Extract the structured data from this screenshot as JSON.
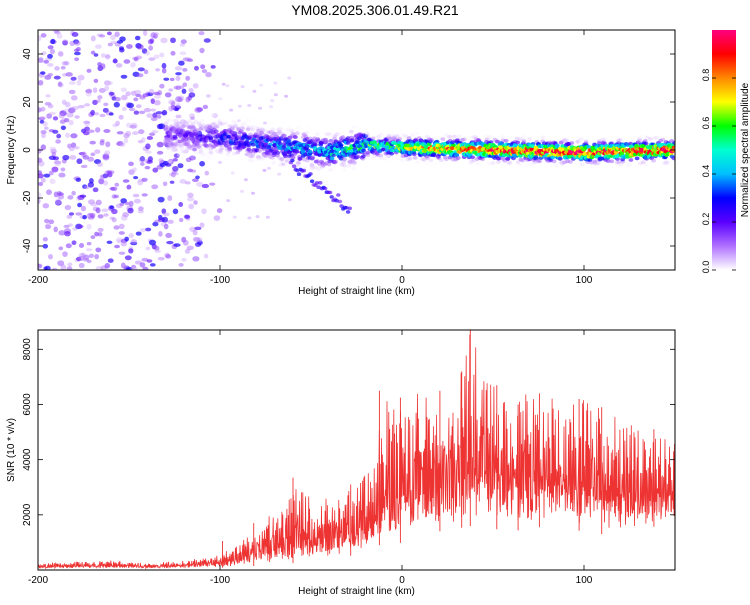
{
  "title": "YM08.2025.306.01.49.R21",
  "chart_data": [
    {
      "type": "heatmap",
      "name": "spectrogram",
      "xlabel": "Height of straight line (km)",
      "ylabel": "Frequency (Hz)",
      "xlim": [
        -200,
        150
      ],
      "ylim": [
        -50,
        50
      ],
      "xticks": [
        -200,
        -100,
        0,
        100
      ],
      "yticks": [
        -40,
        -20,
        0,
        20,
        40
      ],
      "colorbar": {
        "label": "Normalized spectral amplitude",
        "range": [
          0.0,
          1.0
        ],
        "ticks": [
          0.0,
          0.2,
          0.4,
          0.6,
          0.8
        ],
        "tick_labels": [
          "0.0",
          "0.2",
          "0.4",
          "0.6",
          "0.8"
        ],
        "colors": [
          "#ffffff",
          "#b070ff",
          "#5a00ff",
          "#0000ff",
          "#00bfff",
          "#00ffd0",
          "#00ff00",
          "#ffff00",
          "#ff8800",
          "#ff0000",
          "#ff0080"
        ]
      },
      "description": "Scattered purple noise dominates heights -200 to -100 km across all frequencies; a central band near 0 Hz strengthens from -100 km, turning cyan/green then red/yellow near 0 Hz beyond 0 km; a faint branch descends from about -5 Hz at -60 km to about -25 Hz at -30 km.",
      "band": {
        "center_hz": [
          [
            -120,
            6
          ],
          [
            -100,
            5
          ],
          [
            -80,
            3
          ],
          [
            -60,
            1
          ],
          [
            -40,
            -1
          ],
          [
            -20,
            2
          ],
          [
            0,
            1
          ],
          [
            50,
            0
          ],
          [
            100,
            -1
          ],
          [
            150,
            0
          ]
        ],
        "peak_amplitude": [
          [
            -120,
            0.2
          ],
          [
            -100,
            0.3
          ],
          [
            -80,
            0.35
          ],
          [
            -60,
            0.45
          ],
          [
            -40,
            0.5
          ],
          [
            -20,
            0.6
          ],
          [
            0,
            0.7
          ],
          [
            30,
            0.85
          ],
          [
            60,
            0.9
          ],
          [
            100,
            0.95
          ],
          [
            150,
            0.9
          ]
        ]
      }
    },
    {
      "type": "line",
      "name": "snr",
      "xlabel": "Height of straight line (km)",
      "ylabel": "SNR (10 * v/v)",
      "xlim": [
        -200,
        150
      ],
      "ylim": [
        0,
        8700
      ],
      "xticks": [
        -200,
        -100,
        0,
        100
      ],
      "yticks": [
        2000,
        4000,
        6000,
        8000
      ],
      "color": "#ee3333",
      "series": [
        {
          "name": "SNR",
          "x": [
            -200,
            -180,
            -160,
            -140,
            -120,
            -100,
            -90,
            -80,
            -70,
            -60,
            -50,
            -40,
            -30,
            -20,
            -15,
            -10,
            -5,
            0,
            10,
            20,
            30,
            38,
            50,
            60,
            70,
            80,
            90,
            100,
            110,
            120,
            130,
            140,
            150
          ],
          "min": [
            50,
            60,
            60,
            50,
            60,
            80,
            120,
            150,
            200,
            250,
            300,
            400,
            500,
            600,
            800,
            1000,
            900,
            1000,
            1200,
            1400,
            1500,
            1600,
            1500,
            1400,
            1500,
            1600,
            1500,
            1400,
            1300,
            1300,
            1400,
            1600,
            1800
          ],
          "max": [
            250,
            300,
            350,
            250,
            350,
            600,
            900,
            1600,
            2100,
            3200,
            2700,
            2600,
            2900,
            3600,
            3900,
            6300,
            5800,
            6100,
            6500,
            6400,
            6900,
            8700,
            6800,
            6300,
            6400,
            6600,
            6000,
            6200,
            5900,
            5600,
            5200,
            4900,
            4600
          ],
          "peaks": [
            [
              -98.6,
              1050
            ],
            [
              -81.5,
              1700
            ],
            [
              -59.9,
              3350
            ],
            [
              -28.2,
              3100
            ],
            [
              -12.4,
              6500
            ],
            [
              -0.9,
              6250
            ],
            [
              20.8,
              6500
            ],
            [
              32.8,
              7200
            ],
            [
              37.5,
              8700
            ],
            [
              52.1,
              6700
            ],
            [
              63.8,
              6000
            ],
            [
              75.5,
              6400
            ],
            [
              97.3,
              6200
            ],
            [
              109.7,
              5900
            ],
            [
              138.4,
              5100
            ]
          ]
        }
      ]
    }
  ]
}
